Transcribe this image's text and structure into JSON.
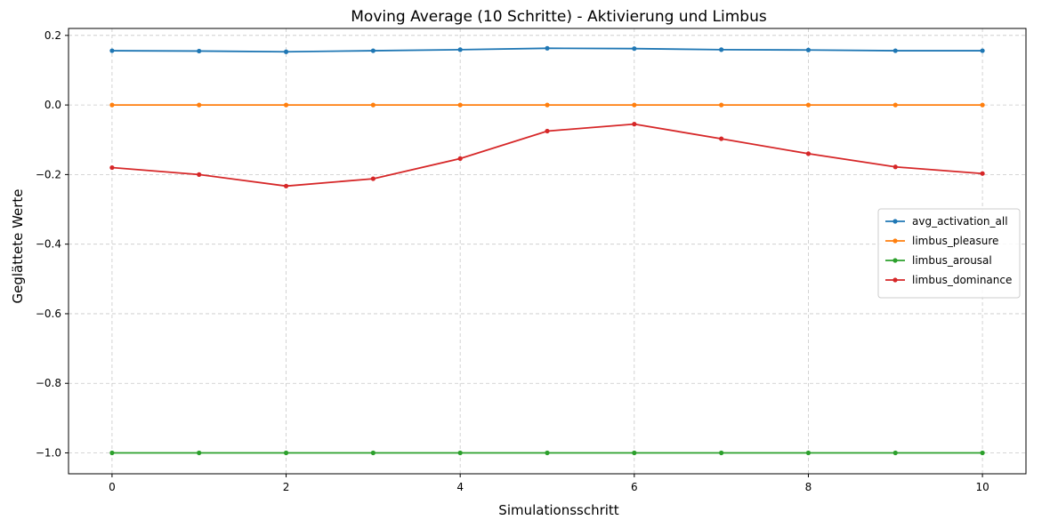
{
  "chart_data": {
    "type": "line",
    "title": "Moving Average (10 Schritte) - Aktivierung und Limbus",
    "xlabel": "Simulationsschritt",
    "ylabel": "Geglättete Werte",
    "x": [
      0,
      1,
      2,
      3,
      4,
      5,
      6,
      7,
      8,
      9,
      10
    ],
    "xlim": [
      -0.5,
      10.5
    ],
    "ylim": [
      -1.06,
      0.22
    ],
    "xticks": [
      0,
      2,
      4,
      6,
      8,
      10
    ],
    "xtick_labels": [
      "0",
      "2",
      "4",
      "6",
      "8",
      "10"
    ],
    "yticks": [
      0.2,
      0.0,
      -0.2,
      -0.4,
      -0.6,
      -0.8,
      -1.0
    ],
    "ytick_labels": [
      "0.2",
      "0.0",
      "−0.2",
      "−0.4",
      "−0.6",
      "−0.8",
      "−1.0"
    ],
    "grid": true,
    "legend_position": "right",
    "series": [
      {
        "name": "avg_activation_all",
        "color": "#1f77b4",
        "values": [
          0.156,
          0.155,
          0.153,
          0.156,
          0.159,
          0.163,
          0.162,
          0.159,
          0.158,
          0.156,
          0.156
        ]
      },
      {
        "name": "limbus_pleasure",
        "color": "#ff7f0e",
        "values": [
          0.0,
          0.0,
          0.0,
          0.0,
          0.0,
          0.0,
          0.0,
          0.0,
          0.0,
          0.0,
          0.0
        ]
      },
      {
        "name": "limbus_arousal",
        "color": "#2ca02c",
        "values": [
          -1.0,
          -1.0,
          -1.0,
          -1.0,
          -1.0,
          -1.0,
          -1.0,
          -1.0,
          -1.0,
          -1.0,
          -1.0
        ]
      },
      {
        "name": "limbus_dominance",
        "color": "#d62728",
        "values": [
          -0.18,
          -0.2,
          -0.233,
          -0.212,
          -0.154,
          -0.075,
          -0.055,
          -0.097,
          -0.14,
          -0.178,
          -0.197
        ]
      }
    ]
  }
}
